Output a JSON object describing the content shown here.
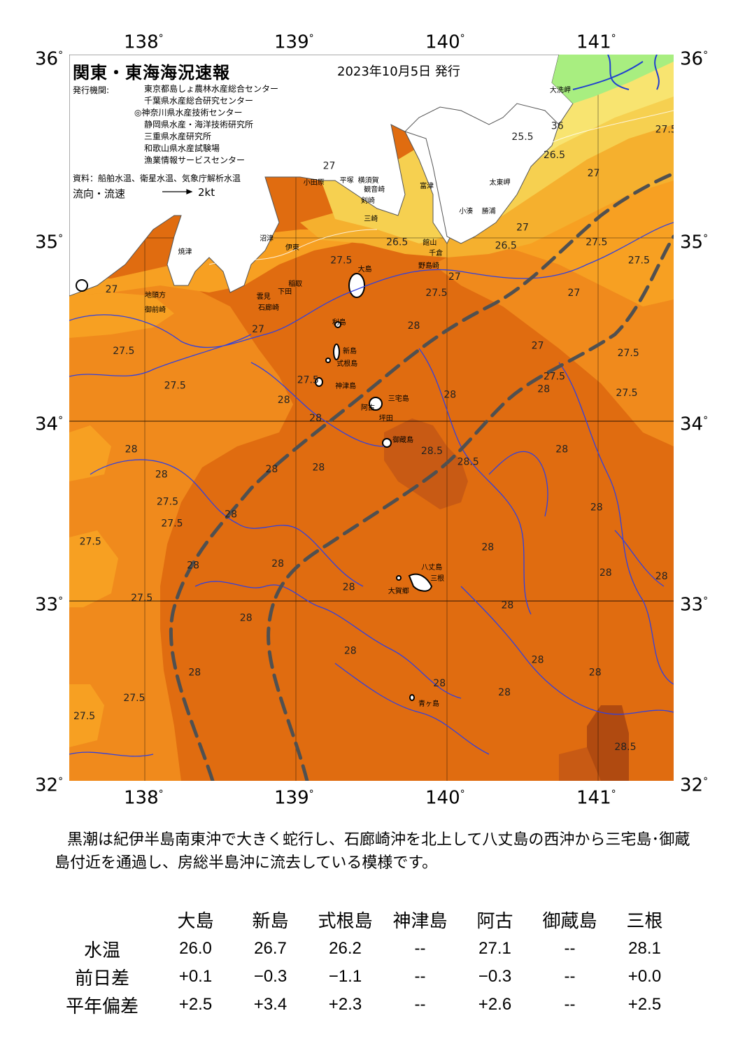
{
  "header": {
    "title": "関東・東海海況速報",
    "issue_date": "2023年10月5日 発行",
    "org_label": "発行機関:",
    "orgs": [
      "東京都島しょ農林水産総合センター",
      "千葉県水産総合研究センター",
      "◎神奈川県水産技術センター",
      "静岡県水産・海洋技術研究所",
      "三重県水産研究所",
      "和歌山県水産試験場",
      "漁業情報サービスセンター"
    ],
    "data_source": "資料：船舶水温、衛星水温、気象庁解析水温",
    "flow_label": "流向・流速",
    "flow_scale": "2kt"
  },
  "axes": {
    "lon_top": [
      "138",
      "139",
      "140",
      "141"
    ],
    "lon_bottom": [
      "138",
      "139",
      "140",
      "141"
    ],
    "lat": [
      "36",
      "35",
      "34",
      "33",
      "32"
    ],
    "degree": "°"
  },
  "map": {
    "colors": {
      "t25": "#fffac0",
      "t25_5": "#f8e470",
      "t26": "#f6d050",
      "t26_5": "#f5b02e",
      "t27": "#f7a022",
      "t27_5": "#f08a1c",
      "t28": "#e06c10",
      "t28_5": "#c85a14",
      "t29": "#b04a10",
      "land": "#ffffff",
      "landgreen": "#a8ee80",
      "river": "#2040d0",
      "contour": "#3040e0",
      "kuroshio": "#505050",
      "grid": "#000000"
    },
    "contour_labels": [
      {
        "text": "36",
        "lon": 140.73,
        "lat": 35.59
      },
      {
        "text": "25.5",
        "lon": 140.5,
        "lat": 35.53
      },
      {
        "text": "26.5",
        "lon": 140.71,
        "lat": 35.43
      },
      {
        "text": "27",
        "lon": 140.97,
        "lat": 35.33
      },
      {
        "text": "27.5",
        "lon": 141.45,
        "lat": 35.57
      },
      {
        "text": "26.5",
        "lon": 139.67,
        "lat": 34.95
      },
      {
        "text": "27",
        "lon": 139.22,
        "lat": 35.37
      },
      {
        "text": "27.5",
        "lon": 139.3,
        "lat": 34.85
      },
      {
        "text": "26.5",
        "lon": 140.39,
        "lat": 34.93
      },
      {
        "text": "27",
        "lon": 140.5,
        "lat": 35.03
      },
      {
        "text": "27.5",
        "lon": 140.99,
        "lat": 34.95
      },
      {
        "text": "27.5",
        "lon": 141.27,
        "lat": 34.85
      },
      {
        "text": "27",
        "lon": 140.05,
        "lat": 34.76
      },
      {
        "text": "27.5",
        "lon": 139.93,
        "lat": 34.67
      },
      {
        "text": "27",
        "lon": 137.78,
        "lat": 34.69
      },
      {
        "text": "27",
        "lon": 138.75,
        "lat": 34.47
      },
      {
        "text": "27.5",
        "lon": 137.86,
        "lat": 34.35
      },
      {
        "text": "27.5",
        "lon": 138.2,
        "lat": 34.16
      },
      {
        "text": "28",
        "lon": 139.78,
        "lat": 34.49
      },
      {
        "text": "27",
        "lon": 140.84,
        "lat": 34.67
      },
      {
        "text": "27",
        "lon": 140.6,
        "lat": 34.38
      },
      {
        "text": "27.5",
        "lon": 141.2,
        "lat": 34.34
      },
      {
        "text": "27.5",
        "lon": 141.19,
        "lat": 34.12
      },
      {
        "text": "27.5",
        "lon": 140.71,
        "lat": 34.21
      },
      {
        "text": "28",
        "lon": 140.64,
        "lat": 34.14
      },
      {
        "text": "27.5",
        "lon": 139.08,
        "lat": 34.19
      },
      {
        "text": "28",
        "lon": 138.92,
        "lat": 34.08
      },
      {
        "text": "28",
        "lon": 139.13,
        "lat": 33.98
      },
      {
        "text": "28",
        "lon": 140.02,
        "lat": 34.11
      },
      {
        "text": "28",
        "lon": 137.91,
        "lat": 33.81
      },
      {
        "text": "28",
        "lon": 138.11,
        "lat": 33.67
      },
      {
        "text": "28",
        "lon": 138.84,
        "lat": 33.7
      },
      {
        "text": "28",
        "lon": 139.15,
        "lat": 33.71
      },
      {
        "text": "28.5",
        "lon": 139.9,
        "lat": 33.8
      },
      {
        "text": "28.5",
        "lon": 140.14,
        "lat": 33.74
      },
      {
        "text": "28",
        "lon": 140.76,
        "lat": 33.81
      },
      {
        "text": "27.5",
        "lon": 138.15,
        "lat": 33.52
      },
      {
        "text": "27.5",
        "lon": 138.18,
        "lat": 33.4
      },
      {
        "text": "28",
        "lon": 138.57,
        "lat": 33.45
      },
      {
        "text": "27.5",
        "lon": 137.64,
        "lat": 33.3
      },
      {
        "text": "28",
        "lon": 140.99,
        "lat": 33.49
      },
      {
        "text": "28",
        "lon": 138.32,
        "lat": 33.17
      },
      {
        "text": "28",
        "lon": 138.88,
        "lat": 33.18
      },
      {
        "text": "28",
        "lon": 140.27,
        "lat": 33.27
      },
      {
        "text": "28",
        "lon": 141.05,
        "lat": 33.13
      },
      {
        "text": "28",
        "lon": 141.42,
        "lat": 33.11
      },
      {
        "text": "28",
        "lon": 139.35,
        "lat": 33.05
      },
      {
        "text": "27.5",
        "lon": 137.98,
        "lat": 32.99
      },
      {
        "text": "28",
        "lon": 138.67,
        "lat": 32.88
      },
      {
        "text": "28",
        "lon": 140.4,
        "lat": 32.95
      },
      {
        "text": "28",
        "lon": 139.36,
        "lat": 32.7
      },
      {
        "text": "28",
        "lon": 140.6,
        "lat": 32.65
      },
      {
        "text": "28",
        "lon": 138.33,
        "lat": 32.58
      },
      {
        "text": "28",
        "lon": 140.98,
        "lat": 32.58
      },
      {
        "text": "28",
        "lon": 139.95,
        "lat": 32.52
      },
      {
        "text": "28",
        "lon": 140.38,
        "lat": 32.47
      },
      {
        "text": "27.5",
        "lon": 137.93,
        "lat": 32.44
      },
      {
        "text": "27.5",
        "lon": 137.6,
        "lat": 32.34
      },
      {
        "text": "28.5",
        "lon": 141.18,
        "lat": 32.17
      }
    ],
    "places": [
      {
        "text": "大洗岬",
        "lon": 140.68,
        "lat": 35.84
      },
      {
        "text": "太東岬",
        "lon": 140.28,
        "lat": 35.33
      },
      {
        "text": "小湊",
        "lon": 140.08,
        "lat": 35.17
      },
      {
        "text": "勝浦",
        "lon": 140.23,
        "lat": 35.17
      },
      {
        "text": "富津",
        "lon": 139.82,
        "lat": 35.31
      },
      {
        "text": "館山",
        "lon": 139.84,
        "lat": 35.0
      },
      {
        "text": "千倉",
        "lon": 139.88,
        "lat": 34.94
      },
      {
        "text": "野島崎",
        "lon": 139.81,
        "lat": 34.87
      },
      {
        "text": "小田原",
        "lon": 139.05,
        "lat": 35.33
      },
      {
        "text": "平塚",
        "lon": 139.29,
        "lat": 35.34
      },
      {
        "text": "横須賀",
        "lon": 139.41,
        "lat": 35.34
      },
      {
        "text": "観音崎",
        "lon": 139.45,
        "lat": 35.29
      },
      {
        "text": "剣崎",
        "lon": 139.43,
        "lat": 35.23
      },
      {
        "text": "三崎",
        "lon": 139.45,
        "lat": 35.13
      },
      {
        "text": "大島",
        "lon": 139.41,
        "lat": 34.85
      },
      {
        "text": "沼津",
        "lon": 138.76,
        "lat": 35.02
      },
      {
        "text": "伊東",
        "lon": 138.93,
        "lat": 34.97
      },
      {
        "text": "焼津",
        "lon": 138.22,
        "lat": 34.95
      },
      {
        "text": "地頭方",
        "lon": 138.0,
        "lat": 34.71
      },
      {
        "text": "御前崎",
        "lon": 138.0,
        "lat": 34.63
      },
      {
        "text": "稲取",
        "lon": 138.95,
        "lat": 34.77
      },
      {
        "text": "下田",
        "lon": 138.88,
        "lat": 34.73
      },
      {
        "text": "雲見",
        "lon": 138.74,
        "lat": 34.7
      },
      {
        "text": "石廊崎",
        "lon": 138.75,
        "lat": 34.64
      },
      {
        "text": "利島",
        "lon": 139.24,
        "lat": 34.56
      },
      {
        "text": "新島",
        "lon": 139.31,
        "lat": 34.4
      },
      {
        "text": "式根島",
        "lon": 139.27,
        "lat": 34.33
      },
      {
        "text": "神津島",
        "lon": 139.26,
        "lat": 34.21
      },
      {
        "text": "阿古",
        "lon": 139.43,
        "lat": 34.09
      },
      {
        "text": "三宅島",
        "lon": 139.61,
        "lat": 34.14
      },
      {
        "text": "坪田",
        "lon": 139.55,
        "lat": 34.03
      },
      {
        "text": "御蔵島",
        "lon": 139.64,
        "lat": 33.91
      },
      {
        "text": "八丈島",
        "lon": 139.83,
        "lat": 33.21
      },
      {
        "text": "三根",
        "lon": 139.89,
        "lat": 33.15
      },
      {
        "text": "大賀郷",
        "lon": 139.61,
        "lat": 33.08
      },
      {
        "text": "青ヶ島",
        "lon": 139.81,
        "lat": 32.46
      }
    ]
  },
  "description": "黒潮は紀伊半島南東沖で大きく蛇行し、石廊崎沖を北上して八丈島の西沖から三宅島･御蔵島付近を通過し、房総半島沖に流去している模様です。",
  "table": {
    "stations": [
      "大島",
      "新島",
      "式根島",
      "神津島",
      "阿古",
      "御蔵島",
      "三根"
    ],
    "rows": [
      {
        "label": "水温",
        "values": [
          "26.0",
          "26.7",
          "26.2",
          "--",
          "27.1",
          "--",
          "28.1"
        ]
      },
      {
        "label": "前日差",
        "values": [
          "+0.1",
          "−0.3",
          "−1.1",
          "--",
          "−0.3",
          "--",
          "+0.0"
        ]
      },
      {
        "label": "平年偏差",
        "values": [
          "+2.5",
          "+3.4",
          "+2.3",
          "--",
          "+2.6",
          "--",
          "+2.5"
        ]
      }
    ]
  }
}
